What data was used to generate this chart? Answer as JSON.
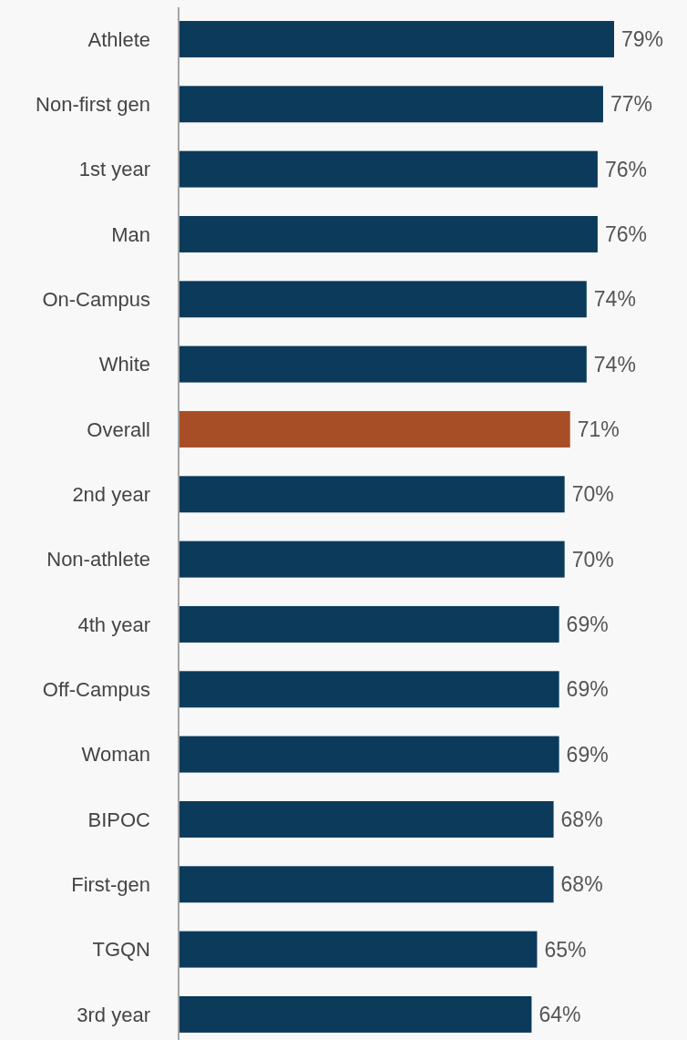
{
  "chart_data": {
    "type": "bar",
    "orientation": "horizontal",
    "categories": [
      "Athlete",
      "Non-first gen",
      "1st year",
      "Man",
      "On-Campus",
      "White",
      "Overall",
      "2nd year",
      "Non-athlete",
      "4th year",
      "Off-Campus",
      "Woman",
      "BIPOC",
      "First-gen",
      "TGQN",
      "3rd year"
    ],
    "values": [
      79,
      77,
      76,
      76,
      74,
      74,
      71,
      70,
      70,
      69,
      69,
      69,
      68,
      68,
      65,
      64
    ],
    "value_labels": [
      "79%",
      "77%",
      "76%",
      "76%",
      "74%",
      "74%",
      "71%",
      "70%",
      "70%",
      "69%",
      "69%",
      "69%",
      "68%",
      "68%",
      "65%",
      "64%"
    ],
    "colors": [
      "#0b3a5a",
      "#0b3a5a",
      "#0b3a5a",
      "#0b3a5a",
      "#0b3a5a",
      "#0b3a5a",
      "#a84e26",
      "#0b3a5a",
      "#0b3a5a",
      "#0b3a5a",
      "#0b3a5a",
      "#0b3a5a",
      "#0b3a5a",
      "#0b3a5a",
      "#0b3a5a",
      "#0b3a5a"
    ]
  }
}
